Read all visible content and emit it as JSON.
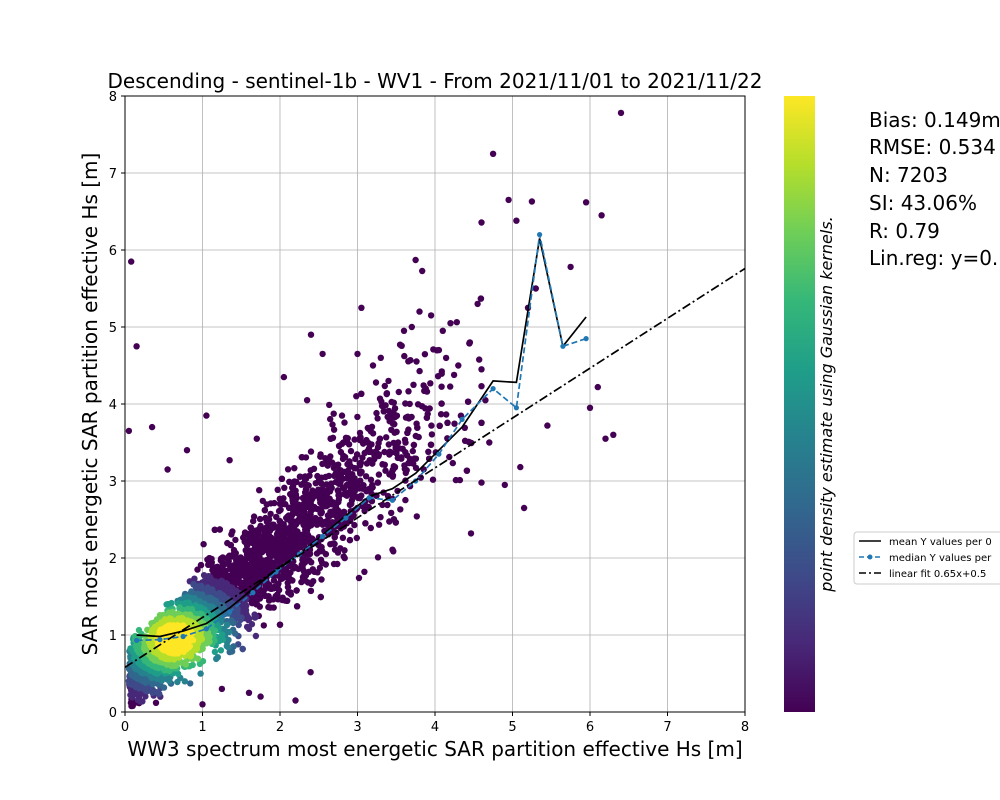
{
  "chart_data": {
    "type": "scatter",
    "title": "Descending - sentinel-1b - WV1 - From 2021/11/01 to 2021/11/22",
    "xlabel": "WW3 spectrum most energetic SAR partition effective Hs [m]",
    "ylabel": "SAR most energetic SAR partition effective Hs [m]",
    "xlim": [
      0,
      8
    ],
    "ylim": [
      0,
      8
    ],
    "xticks": [
      "0",
      "1",
      "2",
      "3",
      "4",
      "5",
      "6",
      "7",
      "8"
    ],
    "yticks": [
      "0",
      "1",
      "2",
      "3",
      "4",
      "5",
      "6",
      "7",
      "8"
    ],
    "grid": true,
    "colorbar_label": "point density estimate using Gaussian kernels.",
    "colormap": [
      "#440154",
      "#482878",
      "#3e4a89",
      "#31688e",
      "#26828e",
      "#1f9e89",
      "#35b779",
      "#6ece58",
      "#b5de2b",
      "#fde725"
    ],
    "stats": [
      "Bias: 0.149m",
      "RMSE: 0.534",
      "N: 7203",
      "SI: 43.06%",
      "R: 0.79",
      "Lin.reg: y=0."
    ],
    "legend": {
      "position": "right",
      "entries": [
        "mean Y values per 0",
        "median Y values per",
        "linear fit 0.65x+0.5"
      ]
    },
    "series": [
      {
        "name": "mean Y values per 0",
        "style": "solid",
        "color": "#000000",
        "x": [
          0.15,
          0.45,
          0.75,
          1.05,
          1.35,
          1.65,
          1.95,
          2.25,
          2.55,
          2.85,
          3.15,
          3.45,
          3.75,
          4.05,
          4.35,
          4.75,
          5.05,
          5.35,
          5.65,
          5.95
        ],
        "y": [
          1.0,
          0.98,
          1.05,
          1.15,
          1.35,
          1.6,
          1.85,
          2.05,
          2.3,
          2.55,
          2.8,
          2.9,
          3.1,
          3.4,
          3.7,
          4.3,
          4.28,
          6.15,
          4.75,
          5.13
        ]
      },
      {
        "name": "median Y values per",
        "style": "dashed",
        "color": "#1f77b4",
        "x": [
          0.15,
          0.45,
          0.75,
          1.05,
          1.35,
          1.65,
          1.95,
          2.25,
          2.55,
          2.85,
          3.15,
          3.45,
          3.75,
          4.05,
          4.35,
          4.75,
          5.05,
          5.35,
          5.65,
          5.95
        ],
        "y": [
          0.93,
          0.94,
          0.98,
          1.08,
          1.3,
          1.55,
          1.82,
          2.05,
          2.28,
          2.52,
          2.78,
          2.75,
          3.0,
          3.35,
          3.8,
          4.2,
          3.95,
          6.2,
          4.75,
          4.85
        ]
      },
      {
        "name": "linear fit 0.65x+0.5",
        "style": "dashdot",
        "color": "#000000",
        "x": [
          0,
          8
        ],
        "y": [
          0.58,
          5.76
        ]
      }
    ],
    "outliers": [
      [
        0.08,
        5.85
      ],
      [
        0.15,
        4.75
      ],
      [
        0.05,
        3.65
      ],
      [
        0.35,
        3.7
      ],
      [
        0.55,
        3.15
      ],
      [
        0.8,
        3.4
      ],
      [
        1.05,
        3.85
      ],
      [
        1.35,
        3.27
      ],
      [
        1.7,
        3.55
      ],
      [
        2.05,
        4.35
      ],
      [
        2.35,
        4.05
      ],
      [
        2.4,
        4.9
      ],
      [
        2.55,
        4.65
      ],
      [
        2.8,
        3.85
      ],
      [
        3.0,
        4.65
      ],
      [
        3.05,
        5.25
      ],
      [
        3.2,
        4.5
      ],
      [
        3.3,
        4.6
      ],
      [
        3.4,
        4.3
      ],
      [
        3.55,
        4.77
      ],
      [
        3.6,
        4.95
      ],
      [
        3.7,
        5.0
      ],
      [
        3.75,
        5.87
      ],
      [
        3.8,
        5.2
      ],
      [
        3.95,
        5.15
      ],
      [
        4.05,
        4.7
      ],
      [
        4.1,
        4.95
      ],
      [
        4.2,
        5.05
      ],
      [
        4.3,
        4.5
      ],
      [
        4.45,
        4.8
      ],
      [
        4.55,
        5.3
      ],
      [
        4.6,
        4.45
      ],
      [
        4.65,
        4.05
      ],
      [
        4.7,
        3.5
      ],
      [
        4.75,
        7.25
      ],
      [
        4.9,
        2.95
      ],
      [
        4.95,
        6.65
      ],
      [
        5.05,
        6.38
      ],
      [
        5.1,
        3.18
      ],
      [
        5.15,
        2.65
      ],
      [
        5.25,
        6.63
      ],
      [
        5.45,
        3.72
      ],
      [
        5.75,
        5.78
      ],
      [
        5.95,
        6.62
      ],
      [
        6.0,
        3.95
      ],
      [
        6.15,
        6.45
      ],
      [
        6.1,
        4.22
      ],
      [
        6.2,
        3.55
      ],
      [
        6.3,
        3.6
      ],
      [
        6.4,
        7.78
      ],
      [
        0.1,
        0.08
      ],
      [
        1.0,
        0.1
      ],
      [
        2.2,
        0.15
      ],
      [
        1.75,
        0.2
      ],
      [
        1.6,
        0.25
      ],
      [
        1.25,
        0.3
      ],
      [
        0.4,
        0.12
      ],
      [
        5.3,
        5.5
      ],
      [
        5.2,
        5.25
      ]
    ]
  }
}
